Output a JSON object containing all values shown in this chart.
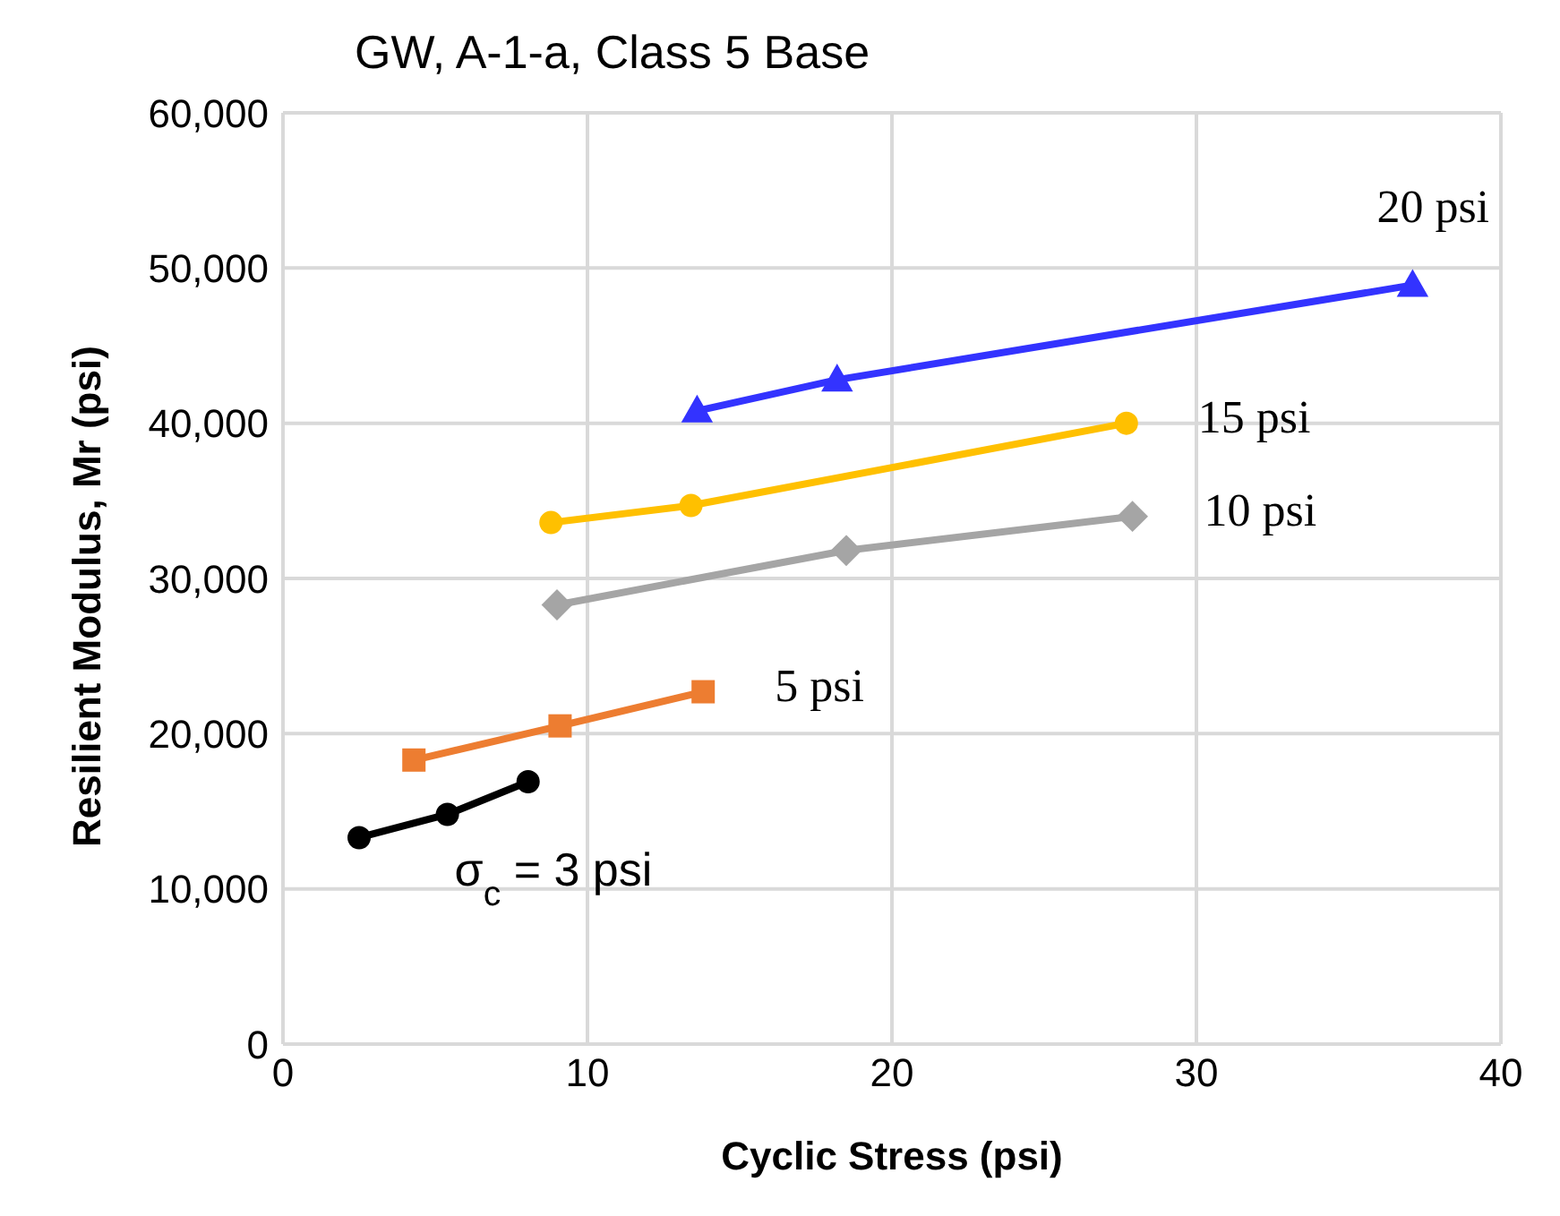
{
  "chart_data": {
    "type": "line",
    "title": "GW, A-1-a, Class 5 Base",
    "xlabel": "Cyclic Stress (psi)",
    "ylabel": "Resilient Modulus, Mr (psi)",
    "xlim": [
      0,
      40
    ],
    "xticks": [
      0,
      10,
      20,
      30,
      40
    ],
    "ylim": [
      0,
      60000
    ],
    "yticks": [
      {
        "value": 0,
        "label": "0"
      },
      {
        "value": 10000,
        "label": "10,000"
      },
      {
        "value": 20000,
        "label": "20,000"
      },
      {
        "value": 30000,
        "label": "30,000"
      },
      {
        "value": 40000,
        "label": "40,000"
      },
      {
        "value": 50000,
        "label": "50,000"
      },
      {
        "value": 60000,
        "label": "60,000"
      }
    ],
    "grid": true,
    "line_style": "solid",
    "series": [
      {
        "name": "σ$_{c}$ = 3 psi",
        "color": "#000000",
        "marker": "circle",
        "x": [
          2.5,
          5.4,
          8.05
        ],
        "values": [
          13300,
          14800,
          16900
        ]
      },
      {
        "name": "5 psi",
        "color": "#ed7d31",
        "marker": "square",
        "x": [
          4.3,
          9.1,
          13.8
        ],
        "values": [
          18300,
          20500,
          22700
        ]
      },
      {
        "name": "10 psi",
        "color": "#a5a5a5",
        "marker": "diamond",
        "x": [
          9.0,
          18.5,
          27.9
        ],
        "values": [
          28300,
          31800,
          34000
        ]
      },
      {
        "name": "15 psi",
        "color": "#ffc000",
        "marker": "circle",
        "x": [
          8.8,
          13.4,
          27.7
        ],
        "values": [
          33600,
          34700,
          40000
        ]
      },
      {
        "name": "20 psi",
        "color": "#3333ff",
        "marker": "triangle",
        "x": [
          13.6,
          18.2,
          37.1
        ],
        "values": [
          40800,
          42800,
          48900
        ]
      }
    ]
  }
}
